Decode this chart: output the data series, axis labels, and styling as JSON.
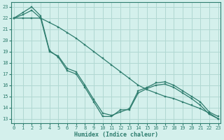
{
  "title": "",
  "xlabel": "Humidex (Indice chaleur)",
  "ylabel": "",
  "bg_color": "#d4f0ec",
  "grid_color": "#b0d8d2",
  "line_color": "#2e7d6e",
  "x_ticks": [
    0,
    1,
    2,
    3,
    4,
    5,
    6,
    7,
    8,
    9,
    10,
    11,
    12,
    13,
    14,
    15,
    16,
    17,
    18,
    19,
    20,
    21,
    22,
    23
  ],
  "y_ticks": [
    13,
    14,
    15,
    16,
    17,
    18,
    19,
    20,
    21,
    22,
    23
  ],
  "xlim": [
    -0.3,
    23.3
  ],
  "ylim": [
    12.6,
    23.4
  ],
  "series": [
    {
      "x": [
        0,
        1,
        2,
        3,
        4,
        5,
        6,
        7,
        8,
        9,
        10,
        11,
        12,
        13,
        14,
        15,
        16,
        17,
        18,
        19,
        20,
        21,
        22,
        23
      ],
      "y": [
        22.0,
        22.5,
        23.0,
        22.2,
        19.1,
        18.5,
        17.3,
        17.0,
        15.8,
        14.5,
        13.2,
        13.2,
        13.8,
        13.8,
        15.3,
        15.7,
        16.0,
        16.1,
        15.8,
        15.3,
        14.8,
        14.2,
        13.4,
        13.0
      ]
    },
    {
      "x": [
        0,
        1,
        2,
        3,
        4,
        5,
        6,
        7,
        8,
        9,
        10,
        11,
        12,
        13,
        14,
        15,
        16,
        17,
        18,
        19,
        20,
        21,
        22,
        23
      ],
      "y": [
        22.0,
        22.3,
        22.7,
        22.0,
        19.0,
        18.6,
        17.5,
        17.2,
        16.0,
        14.7,
        13.5,
        13.3,
        13.6,
        13.9,
        15.5,
        15.8,
        16.2,
        16.3,
        16.0,
        15.5,
        15.0,
        14.5,
        13.6,
        13.2
      ]
    },
    {
      "x": [
        0,
        1,
        2,
        3,
        4,
        5,
        6,
        7,
        8,
        9,
        10,
        11,
        12,
        13,
        14,
        15,
        16,
        17,
        18,
        19,
        20,
        21,
        22,
        23
      ],
      "y": [
        22.0,
        22.0,
        22.0,
        22.0,
        21.6,
        21.2,
        20.7,
        20.2,
        19.6,
        19.0,
        18.4,
        17.8,
        17.2,
        16.6,
        16.0,
        15.6,
        15.3,
        15.0,
        14.8,
        14.5,
        14.2,
        13.9,
        13.5,
        13.0
      ]
    }
  ]
}
